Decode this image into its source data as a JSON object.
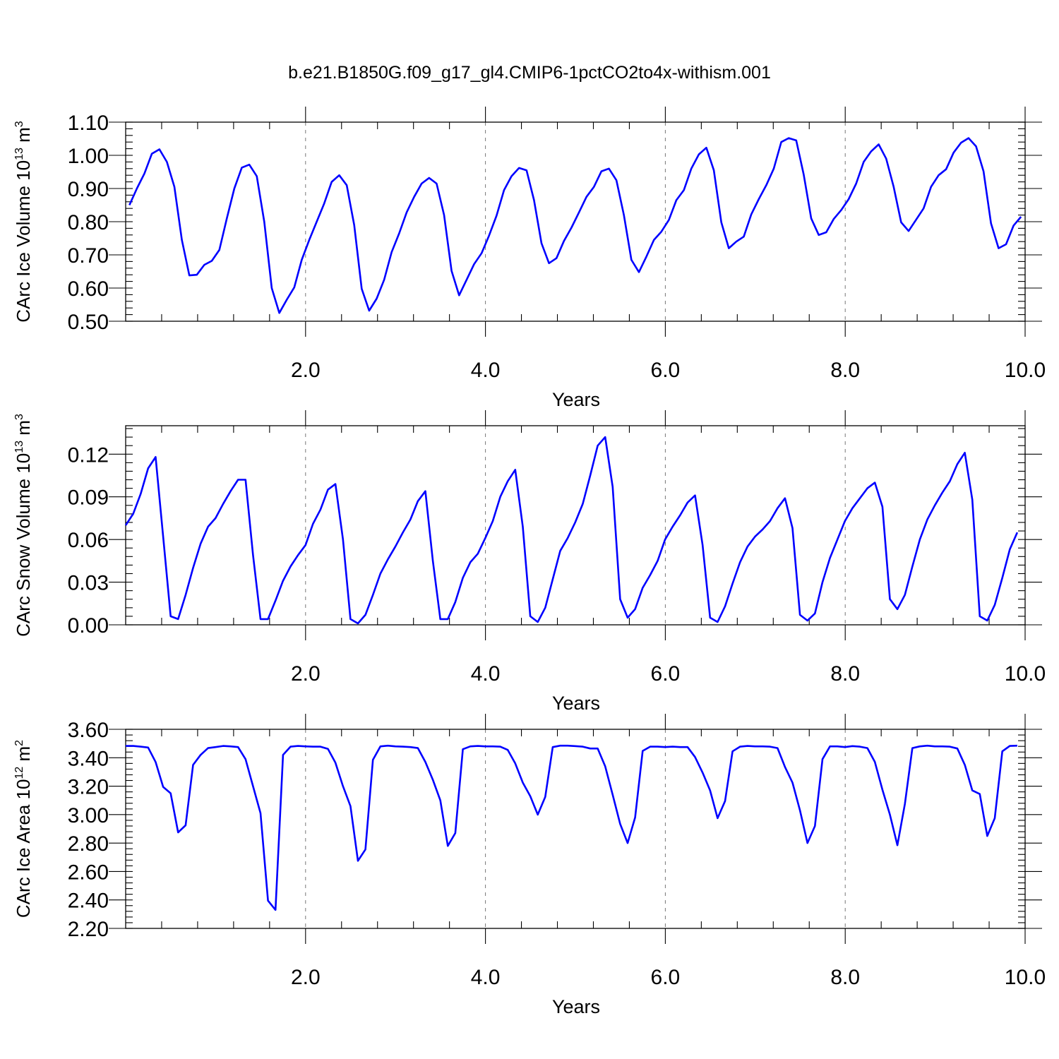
{
  "title": "b.e21.B1850G.f09_g17_gl4.CMIP6-1pctCO2to4x-withism.001",
  "chart_data": [
    {
      "type": "line",
      "xlabel": "Years",
      "ylabel": {
        "text": "CArc Ice Volume 10",
        "exp": "13",
        "unit": " m",
        "unit_exp": "3"
      },
      "xlim": [
        0.0,
        10.0
      ],
      "ylim": [
        0.5,
        1.1
      ],
      "xticks": [
        2.0,
        4.0,
        6.0,
        8.0,
        10.0
      ],
      "xtick_labels": [
        "2.0",
        "4.0",
        "6.0",
        "8.0",
        "10.0"
      ],
      "yticks": [
        0.5,
        0.6,
        0.7,
        0.8,
        0.9,
        1.0,
        1.1
      ],
      "ytick_labels": [
        "0.50",
        "0.60",
        "0.70",
        "0.80",
        "0.90",
        "1.00",
        "1.10"
      ],
      "grid": "dashed-vertical-at-major-x",
      "series": [
        {
          "color": "#0000ff",
          "x_start": 0.0417,
          "x_step": 0.0833,
          "values": [
            0.85,
            0.9,
            0.945,
            1.005,
            1.018,
            0.98,
            0.905,
            0.745,
            0.638,
            0.64,
            0.67,
            0.682,
            0.715,
            0.81,
            0.9,
            0.963,
            0.972,
            0.937,
            0.8,
            0.6,
            0.525,
            0.565,
            0.602,
            0.685,
            0.745,
            0.8,
            0.855,
            0.92,
            0.94,
            0.91,
            0.79,
            0.598,
            0.532,
            0.568,
            0.625,
            0.708,
            0.765,
            0.828,
            0.875,
            0.915,
            0.932,
            0.915,
            0.82,
            0.652,
            0.578,
            0.625,
            0.672,
            0.705,
            0.758,
            0.818,
            0.895,
            0.937,
            0.962,
            0.955,
            0.865,
            0.735,
            0.675,
            0.69,
            0.742,
            0.782,
            0.828,
            0.875,
            0.905,
            0.952,
            0.96,
            0.925,
            0.82,
            0.685,
            0.648,
            0.695,
            0.745,
            0.77,
            0.805,
            0.865,
            0.895,
            0.96,
            1.003,
            1.023,
            0.955,
            0.798,
            0.72,
            0.74,
            0.755,
            0.822,
            0.868,
            0.91,
            0.96,
            1.04,
            1.052,
            1.045,
            0.942,
            0.81,
            0.76,
            0.768,
            0.808,
            0.835,
            0.868,
            0.915,
            0.98,
            1.012,
            1.033,
            0.99,
            0.905,
            0.798,
            0.772,
            0.806,
            0.84,
            0.905,
            0.94,
            0.958,
            1.008,
            1.038,
            1.052,
            1.027,
            0.952,
            0.795,
            0.72,
            0.732,
            0.788,
            0.815
          ]
        }
      ]
    },
    {
      "type": "line",
      "xlabel": "Years",
      "ylabel": {
        "text": "CArc Snow Volume 10",
        "exp": "13",
        "unit": " m",
        "unit_exp": "3"
      },
      "xlim": [
        0.0,
        10.0
      ],
      "ylim": [
        0.0,
        0.14
      ],
      "xticks": [
        2.0,
        4.0,
        6.0,
        8.0,
        10.0
      ],
      "xtick_labels": [
        "2.0",
        "4.0",
        "6.0",
        "8.0",
        "10.0"
      ],
      "yticks": [
        0.0,
        0.03,
        0.06,
        0.09,
        0.12
      ],
      "ytick_labels": [
        "0.00",
        "0.03",
        "0.06",
        "0.09",
        "0.12"
      ],
      "grid": "dashed-vertical-at-major-x",
      "series": [
        {
          "color": "#0000ff",
          "x_start": 0.0,
          "x_step": 0.0833,
          "values": [
            0.07,
            0.078,
            0.092,
            0.11,
            0.118,
            0.062,
            0.006,
            0.004,
            0.021,
            0.04,
            0.057,
            0.069,
            0.075,
            0.085,
            0.094,
            0.102,
            0.102,
            0.049,
            0.004,
            0.004,
            0.017,
            0.031,
            0.041,
            0.049,
            0.056,
            0.071,
            0.081,
            0.095,
            0.099,
            0.06,
            0.004,
            0.001,
            0.007,
            0.021,
            0.036,
            0.046,
            0.055,
            0.065,
            0.074,
            0.087,
            0.094,
            0.045,
            0.004,
            0.004,
            0.016,
            0.033,
            0.044,
            0.05,
            0.061,
            0.073,
            0.09,
            0.101,
            0.109,
            0.069,
            0.006,
            0.002,
            0.012,
            0.032,
            0.052,
            0.061,
            0.072,
            0.085,
            0.105,
            0.126,
            0.132,
            0.097,
            0.018,
            0.005,
            0.011,
            0.026,
            0.035,
            0.045,
            0.06,
            0.069,
            0.077,
            0.086,
            0.091,
            0.056,
            0.005,
            0.002,
            0.013,
            0.029,
            0.044,
            0.055,
            0.062,
            0.067,
            0.073,
            0.082,
            0.089,
            0.068,
            0.007,
            0.003,
            0.008,
            0.03,
            0.047,
            0.06,
            0.073,
            0.082,
            0.089,
            0.096,
            0.1,
            0.083,
            0.018,
            0.011,
            0.021,
            0.041,
            0.06,
            0.074,
            0.084,
            0.093,
            0.101,
            0.113,
            0.121,
            0.088,
            0.006,
            0.003,
            0.014,
            0.033,
            0.053,
            0.065
          ]
        }
      ]
    },
    {
      "type": "line",
      "xlabel": "Years",
      "ylabel": {
        "text": "CArc Ice Area 10",
        "exp": "12",
        "unit": " m",
        "unit_exp": "2"
      },
      "xlim": [
        0.0,
        10.0
      ],
      "ylim": [
        2.2,
        3.6
      ],
      "xticks": [
        2.0,
        4.0,
        6.0,
        8.0,
        10.0
      ],
      "xtick_labels": [
        "2.0",
        "4.0",
        "6.0",
        "8.0",
        "10.0"
      ],
      "yticks": [
        2.2,
        2.4,
        2.6,
        2.8,
        3.0,
        3.2,
        3.4,
        3.6
      ],
      "ytick_labels": [
        "2.20",
        "2.40",
        "2.60",
        "2.80",
        "3.00",
        "3.20",
        "3.40",
        "3.60"
      ],
      "grid": "dashed-vertical-at-major-x",
      "series": [
        {
          "color": "#0000ff",
          "x_start": 0.0,
          "x_step": 0.0833,
          "values": [
            3.483,
            3.483,
            3.478,
            3.472,
            3.37,
            3.195,
            3.15,
            2.875,
            2.925,
            3.35,
            3.42,
            3.468,
            3.475,
            3.483,
            3.48,
            3.475,
            3.39,
            3.2,
            3.01,
            2.395,
            2.33,
            3.42,
            3.478,
            3.483,
            3.48,
            3.478,
            3.478,
            3.462,
            3.365,
            3.2,
            3.06,
            2.675,
            2.755,
            3.385,
            3.48,
            3.485,
            3.48,
            3.478,
            3.475,
            3.468,
            3.37,
            3.245,
            3.1,
            2.78,
            2.87,
            3.46,
            3.48,
            3.483,
            3.48,
            3.48,
            3.478,
            3.455,
            3.36,
            3.225,
            3.13,
            3.0,
            3.125,
            3.475,
            3.485,
            3.485,
            3.482,
            3.478,
            3.465,
            3.465,
            3.34,
            3.14,
            2.935,
            2.8,
            2.98,
            3.448,
            3.478,
            3.478,
            3.475,
            3.478,
            3.475,
            3.475,
            3.405,
            3.295,
            3.17,
            2.975,
            3.095,
            3.445,
            3.478,
            3.483,
            3.48,
            3.48,
            3.478,
            3.468,
            3.335,
            3.225,
            3.03,
            2.8,
            2.92,
            3.39,
            3.48,
            3.48,
            3.475,
            3.482,
            3.478,
            3.468,
            3.37,
            3.175,
            3.0,
            2.785,
            3.075,
            3.468,
            3.48,
            3.485,
            3.48,
            3.48,
            3.478,
            3.465,
            3.35,
            3.17,
            3.145,
            2.85,
            2.975,
            3.445,
            3.483,
            3.485
          ]
        }
      ]
    }
  ]
}
